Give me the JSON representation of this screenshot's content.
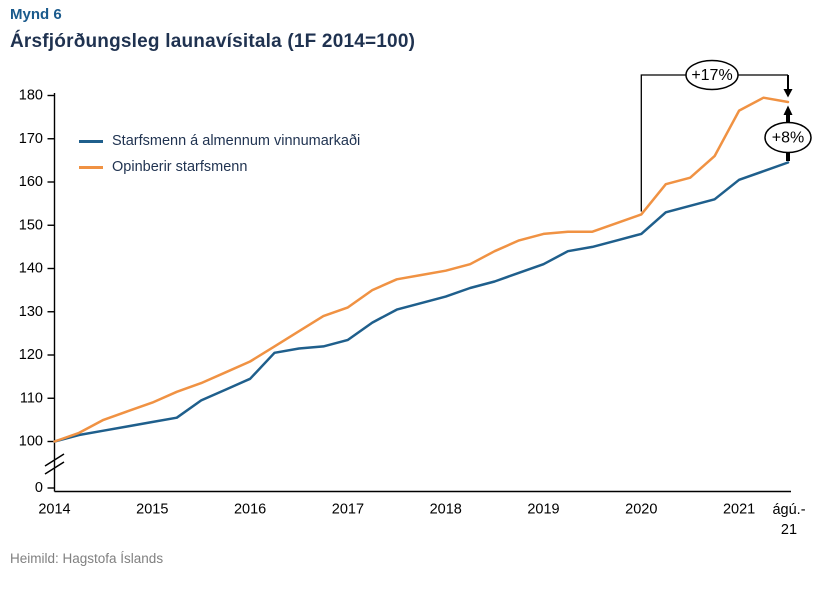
{
  "figure_label": "Mynd 6",
  "title": "Ársfjórðungsleg launavísitala (1F 2014=100)",
  "source": "Heimild: Hagstofa Íslands",
  "colors": {
    "figure_label": "#1A5A8C",
    "title": "#1F3250",
    "legend_text": "#1F3250",
    "axis": "#000000",
    "source_text": "#808080",
    "annotation": "#000000",
    "series_private": "#1F5F8C",
    "series_public": "#F09243"
  },
  "chart_data": {
    "type": "line",
    "title": "Ársfjórðungsleg launavísitala (1F 2014=100)",
    "x_unit": "quarters, 2014Q1 to August 2021",
    "x_tick_labels": [
      "2014",
      "2015",
      "2016",
      "2017",
      "2018",
      "2019",
      "2020",
      "2021",
      "ágú.-21"
    ],
    "y_ticks": [
      0,
      100,
      110,
      120,
      130,
      140,
      150,
      160,
      170,
      180
    ],
    "ylim": [
      0,
      180
    ],
    "y_axis_break": true,
    "grid": false,
    "legend_position": "top-left-inside",
    "series": [
      {
        "name": "Starfsmenn á almennum vinnumarkaði",
        "color": "#1F5F8C",
        "values": [
          100,
          101.5,
          102.5,
          103.5,
          104.5,
          105.5,
          109.5,
          112,
          114.5,
          120.5,
          121.5,
          122,
          123.5,
          127.5,
          130.5,
          132,
          133.5,
          135.5,
          137,
          139,
          141,
          144,
          145,
          146.5,
          148,
          153,
          154.5,
          156,
          160.5,
          162.5,
          164.5
        ]
      },
      {
        "name": "Opinberir starfsmenn",
        "color": "#F09243",
        "values": [
          100,
          102,
          105,
          107,
          109,
          111.5,
          113.5,
          116,
          118.5,
          122,
          125.5,
          129,
          131,
          135,
          137.5,
          138.5,
          139.5,
          141,
          144,
          146.5,
          148,
          148.5,
          148.5,
          150.5,
          152.5,
          159.5,
          161,
          166,
          176.5,
          179.5,
          178.5
        ]
      }
    ],
    "annotations": [
      {
        "label": "+17%",
        "type": "bracket-arrow",
        "description": "Rise of Opinberir starfsmenn from 2020Q1 (152.5) to August 2021 (178.5)",
        "from_series_index": 1,
        "from_point_index": 24,
        "to_point_index": 30
      },
      {
        "label": "+8%",
        "type": "double-arrow",
        "description": "Gap between the two series at August 2021 (164.5 vs 178.5)",
        "lower_series_index": 0,
        "upper_series_index": 1,
        "at_point_index": 30
      }
    ]
  }
}
